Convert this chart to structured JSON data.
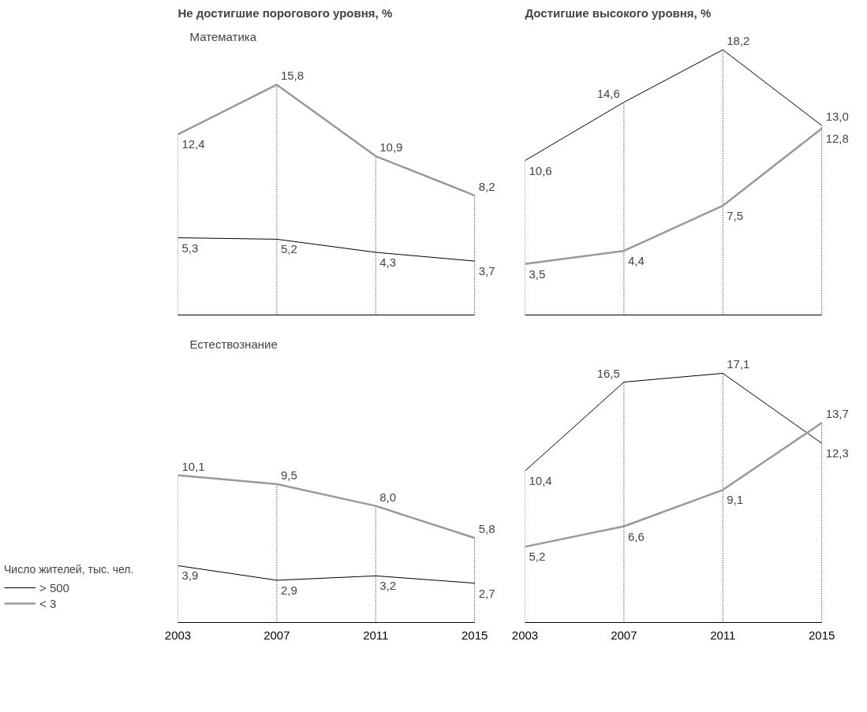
{
  "chart_data": [
    {
      "type": "line",
      "title": "Не достигшие порогового уровня, %",
      "annotations": [
        "Математика"
      ],
      "x": [
        2003,
        2007,
        2011,
        2015
      ],
      "xlim": [
        2003,
        2015
      ],
      "xticks": [
        2003,
        2007,
        2011,
        2015
      ],
      "tick_labels": false,
      "legend": false,
      "grid": "x",
      "series": [
        {
          "color": "#000000",
          "values": [
            5.3,
            5.2,
            4.3,
            3.7
          ],
          "value_labels": [
            "5,3",
            "5,2",
            "4,3",
            "3,7"
          ]
        },
        {
          "color": "#999999",
          "values": [
            12.4,
            15.8,
            10.9,
            8.2
          ],
          "value_labels": [
            "12,4",
            "15,8",
            "10,9",
            "8,2"
          ]
        }
      ]
    },
    {
      "type": "line",
      "title": "Достигшие высокого уровня, %",
      "x": [
        2003,
        2007,
        2011,
        2015
      ],
      "xlim": [
        2003,
        2015
      ],
      "xticks": [
        2003,
        2007,
        2011,
        2015
      ],
      "tick_labels": false,
      "legend": false,
      "grid": "x",
      "series": [
        {
          "color": "#000000",
          "values": [
            10.6,
            14.6,
            18.2,
            13.0
          ],
          "value_labels": [
            "10,6",
            "14,6",
            "18,2",
            "13,0"
          ]
        },
        {
          "color": "#999999",
          "values": [
            3.5,
            4.4,
            7.5,
            12.8
          ],
          "value_labels": [
            "3,5",
            "4,4",
            "7,5",
            "12,8"
          ]
        }
      ]
    },
    {
      "type": "line",
      "annotations": [
        "Естествознание"
      ],
      "legend_title": "Число жителей, тыс. чел.",
      "x": [
        2003,
        2007,
        2011,
        2015
      ],
      "xlim": [
        2003,
        2015
      ],
      "xticks": [
        2003,
        2007,
        2011,
        2015
      ],
      "tick_labels": "x",
      "legend": "left",
      "grid": "x",
      "series": [
        {
          "name": "> 500",
          "color": "#000000",
          "values": [
            3.9,
            2.9,
            3.2,
            2.7
          ],
          "value_labels": [
            "3,9",
            "2,9",
            "3,2",
            "2,7"
          ]
        },
        {
          "name": "< 3",
          "color": "#999999",
          "values": [
            10.1,
            9.5,
            8.0,
            5.8
          ],
          "value_labels": [
            "10,1",
            "9,5",
            "8,0",
            "5,8"
          ]
        }
      ]
    },
    {
      "type": "line",
      "x": [
        2003,
        2007,
        2011,
        2015
      ],
      "xlim": [
        2003,
        2015
      ],
      "xticks": [
        2003,
        2007,
        2011,
        2015
      ],
      "tick_labels": "x",
      "legend": false,
      "grid": "x",
      "series": [
        {
          "color": "#000000",
          "values": [
            10.4,
            16.5,
            17.1,
            12.3
          ],
          "value_labels": [
            "10,4",
            "16,5",
            "17,1",
            "12,3"
          ]
        },
        {
          "color": "#999999",
          "values": [
            5.2,
            6.6,
            9.1,
            13.7
          ],
          "value_labels": [
            "5,2",
            "6,6",
            "9,1",
            "13,7"
          ]
        }
      ]
    }
  ]
}
